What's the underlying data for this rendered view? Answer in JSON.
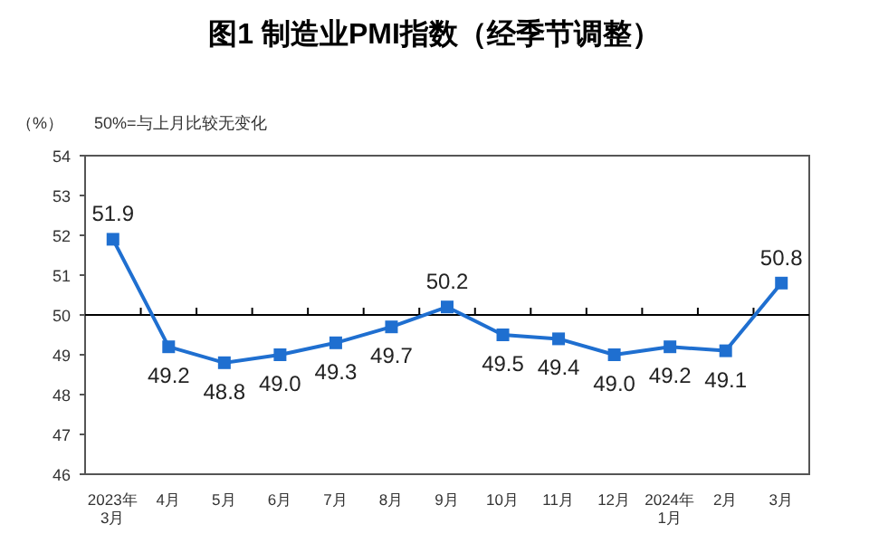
{
  "chart_data": {
    "type": "line",
    "title": "图1  制造业PMI指数（经季节调整）",
    "ylabel": "（%）",
    "annotations": [
      "50%=与上月比较无变化"
    ],
    "categories": [
      "2023年\n3月",
      "4月",
      "5月",
      "6月",
      "7月",
      "8月",
      "9月",
      "10月",
      "11月",
      "12月",
      "2024年\n1月",
      "2月",
      "3月"
    ],
    "series": [
      {
        "color": "#1f6fd0",
        "values": [
          51.9,
          49.2,
          48.8,
          49.0,
          49.3,
          49.7,
          50.2,
          49.5,
          49.4,
          49.0,
          49.2,
          49.1,
          50.8
        ],
        "value_labels": [
          "51.9",
          "49.2",
          "48.8",
          "49.0",
          "49.3",
          "49.7",
          "50.2",
          "49.5",
          "49.4",
          "49.0",
          "49.2",
          "49.1",
          "50.8"
        ]
      }
    ],
    "ylim": [
      46,
      54
    ],
    "yticks": [
      46,
      47,
      48,
      49,
      50,
      51,
      52,
      53,
      54
    ],
    "ref_lines": [
      {
        "axis": "y",
        "value": 50,
        "color": "#000000"
      }
    ],
    "marker": "square",
    "line_style": "solid",
    "grid": false
  }
}
